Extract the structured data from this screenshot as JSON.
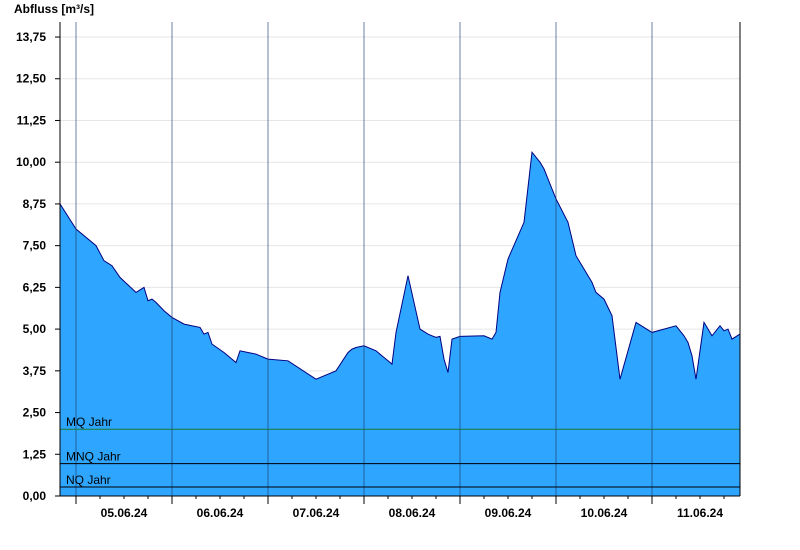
{
  "chart_data": {
    "type": "area",
    "ylabel": "Abfluss [m³/s]",
    "ylim": [
      0,
      14.2
    ],
    "yticks": [
      0,
      1.25,
      2.5,
      3.75,
      5,
      6.25,
      7.5,
      8.75,
      10,
      11.25,
      12.5,
      13.75
    ],
    "ytick_labels": [
      "0,00",
      "1,25",
      "2,50",
      "3,75",
      "5,00",
      "6,25",
      "7,50",
      "8,75",
      "10,00",
      "11,25",
      "12,50",
      "13,75"
    ],
    "x_start": "2024-06-04T20:00",
    "x_end": "2024-06-11T22:00",
    "day_boundaries": [
      "2024-06-05T00:00",
      "2024-06-06T00:00",
      "2024-06-07T00:00",
      "2024-06-08T00:00",
      "2024-06-09T00:00",
      "2024-06-10T00:00",
      "2024-06-11T00:00"
    ],
    "x_labels": [
      {
        "at": "2024-06-05T12:00",
        "label": "05.06.24"
      },
      {
        "at": "2024-06-06T12:00",
        "label": "06.06.24"
      },
      {
        "at": "2024-06-07T12:00",
        "label": "07.06.24"
      },
      {
        "at": "2024-06-08T12:00",
        "label": "08.06.24"
      },
      {
        "at": "2024-06-09T12:00",
        "label": "09.06.24"
      },
      {
        "at": "2024-06-10T12:00",
        "label": "10.06.24"
      },
      {
        "at": "2024-06-11T12:00",
        "label": "11.06.24"
      }
    ],
    "reference_lines": [
      {
        "name": "MQ Jahr",
        "value": 2.0,
        "color": "#1a7a2e"
      },
      {
        "name": "MNQ Jahr",
        "value": 0.97,
        "color": "#000000"
      },
      {
        "name": "NQ Jahr",
        "value": 0.27,
        "color": "#000000"
      }
    ],
    "grid": true,
    "fill_color": "#2ea5ff",
    "line_color": "#000080",
    "series": [
      {
        "x": [
          "2024-06-04T20:00",
          "2024-06-05T00:00",
          "2024-06-05T05:00",
          "2024-06-05T07:00",
          "2024-06-05T09:00",
          "2024-06-05T11:00",
          "2024-06-05T15:00",
          "2024-06-05T17:00",
          "2024-06-05T18:00",
          "2024-06-05T19:00",
          "2024-06-05T20:00",
          "2024-06-05T22:00",
          "2024-06-06T00:00",
          "2024-06-06T03:00",
          "2024-06-06T07:00",
          "2024-06-06T08:00",
          "2024-06-06T09:00",
          "2024-06-06T10:00",
          "2024-06-06T13:00",
          "2024-06-06T16:00",
          "2024-06-06T17:00",
          "2024-06-06T19:00",
          "2024-06-06T21:00",
          "2024-06-06T22:00",
          "2024-06-06T23:00",
          "2024-06-07T00:00",
          "2024-06-07T05:00",
          "2024-06-07T12:00",
          "2024-06-07T17:00",
          "2024-06-07T20:00",
          "2024-06-07T21:00",
          "2024-06-07T22:00",
          "2024-06-08T00:00",
          "2024-06-08T03:00",
          "2024-06-08T06:00",
          "2024-06-08T07:00",
          "2024-06-08T08:00",
          "2024-06-08T11:00",
          "2024-06-08T14:00",
          "2024-06-08T16:00",
          "2024-06-08T17:00",
          "2024-06-08T18:00",
          "2024-06-08T19:00",
          "2024-06-08T20:00",
          "2024-06-08T21:00",
          "2024-06-08T22:00",
          "2024-06-09T00:00",
          "2024-06-09T06:00",
          "2024-06-09T08:00",
          "2024-06-09T09:00",
          "2024-06-09T10:00",
          "2024-06-09T12:00",
          "2024-06-09T16:00",
          "2024-06-09T18:00",
          "2024-06-09T20:00",
          "2024-06-09T21:00",
          "2024-06-09T22:00",
          "2024-06-09T23:00",
          "2024-06-10T00:00",
          "2024-06-10T03:00",
          "2024-06-10T04:00",
          "2024-06-10T05:00",
          "2024-06-10T07:00",
          "2024-06-10T09:00",
          "2024-06-10T10:00",
          "2024-06-10T12:00",
          "2024-06-10T14:00",
          "2024-06-10T16:00",
          "2024-06-10T20:00",
          "2024-06-11T00:00",
          "2024-06-11T03:00",
          "2024-06-11T06:00",
          "2024-06-11T07:00",
          "2024-06-11T08:00",
          "2024-06-11T09:00",
          "2024-06-11T10:00",
          "2024-06-11T11:00",
          "2024-06-11T13:00",
          "2024-06-11T15:00",
          "2024-06-11T17:00",
          "2024-06-11T18:00",
          "2024-06-11T19:00",
          "2024-06-11T20:00",
          "2024-06-11T22:00"
        ],
        "values": [
          8.75,
          8.0,
          7.5,
          7.05,
          6.9,
          6.55,
          6.1,
          6.25,
          5.85,
          5.9,
          5.8,
          5.55,
          5.35,
          5.15,
          5.05,
          4.85,
          4.9,
          4.55,
          4.3,
          4.0,
          4.35,
          4.3,
          4.25,
          4.2,
          4.15,
          4.1,
          4.05,
          3.5,
          3.75,
          4.3,
          4.4,
          4.45,
          4.5,
          4.35,
          4.05,
          3.95,
          4.9,
          6.6,
          5.0,
          4.85,
          4.8,
          4.75,
          4.78,
          4.1,
          3.7,
          4.7,
          4.78,
          4.8,
          4.7,
          4.9,
          6.1,
          7.1,
          8.2,
          10.3,
          10.0,
          9.8,
          9.5,
          9.2,
          8.9,
          8.2,
          7.7,
          7.2,
          6.8,
          6.4,
          6.1,
          5.9,
          5.4,
          3.5,
          5.2,
          4.9,
          5.0,
          5.1,
          4.95,
          4.8,
          4.6,
          4.2,
          3.5,
          5.2,
          4.8,
          5.1,
          4.95,
          5.0,
          4.7,
          4.85
        ]
      }
    ]
  }
}
